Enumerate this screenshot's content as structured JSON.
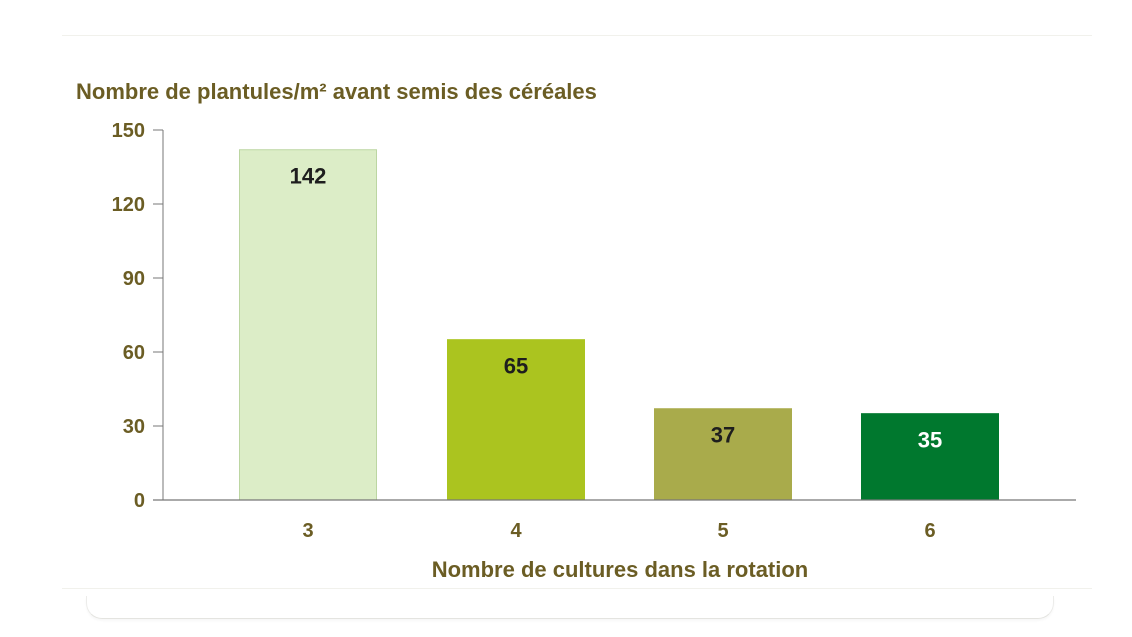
{
  "chart_data": {
    "type": "bar",
    "title": "Nombre de plantules/m² avant semis des céréales",
    "xlabel": "Nombre de cultures dans la rotation",
    "ylabel": "",
    "categories": [
      "3",
      "4",
      "5",
      "6"
    ],
    "values": [
      142,
      65,
      37,
      35
    ],
    "data_labels": [
      "142",
      "65",
      "37",
      "35"
    ],
    "ylim": [
      0,
      150
    ],
    "yticks": [
      0,
      30,
      60,
      90,
      120,
      150
    ],
    "ytick_labels": [
      "0",
      "30",
      "60",
      "90",
      "120",
      "150"
    ],
    "grid": false,
    "legend": "none",
    "bar_colors": [
      "#dcedc7",
      "#abc41f",
      "#a9ab4b",
      "#00782e"
    ],
    "bar_edge_colors": [
      "#bcd6a2",
      "#abc41f",
      "#a9ab4b",
      "#00782e"
    ],
    "label_colors": [
      "#1e1e1e",
      "#1e1e1e",
      "#1e1e1e",
      "#ffffff"
    ],
    "text_color": "#6b5d24",
    "axis_color": "#777777"
  }
}
